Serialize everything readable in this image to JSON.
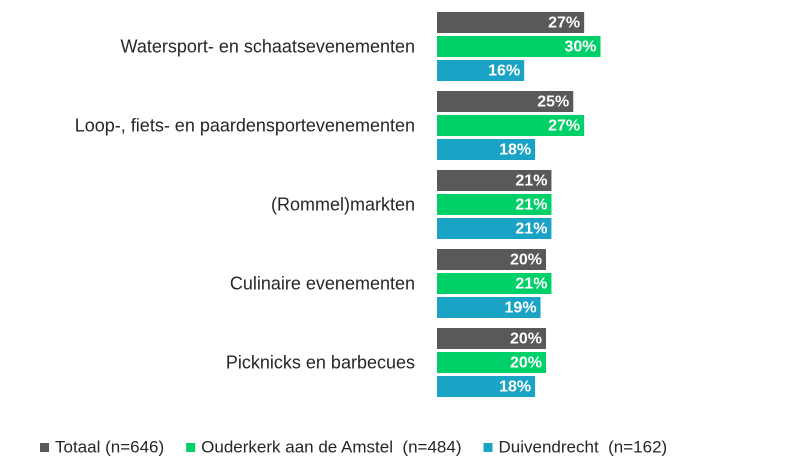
{
  "chart_data": {
    "type": "bar",
    "orientation": "horizontal",
    "categories": [
      "Watersport- en schaatsevenementen",
      "Loop-, fiets- en paardensportevenementen",
      "(Rommel)markten",
      "Culinaire evenementen",
      "Picknicks en barbecues"
    ],
    "series": [
      {
        "name": "Totaal (n=646)",
        "color": "#595959",
        "values": [
          27,
          25,
          21,
          20,
          20
        ],
        "value_labels": [
          "27%",
          "25%",
          "21%",
          "20%",
          "20%"
        ]
      },
      {
        "name": "Ouderkerk aan de Amstel  (n=484)",
        "color": "#00d068",
        "values": [
          30,
          27,
          21,
          21,
          20
        ],
        "value_labels": [
          "30%",
          "27%",
          "21%",
          "21%",
          "20%"
        ]
      },
      {
        "name": "Duivendrecht  (n=162)",
        "color": "#1ba3c6",
        "values": [
          16,
          18,
          21,
          19,
          18
        ],
        "value_labels": [
          "16%",
          "18%",
          "21%",
          "19%",
          "18%"
        ]
      }
    ],
    "legend": "bottom"
  }
}
